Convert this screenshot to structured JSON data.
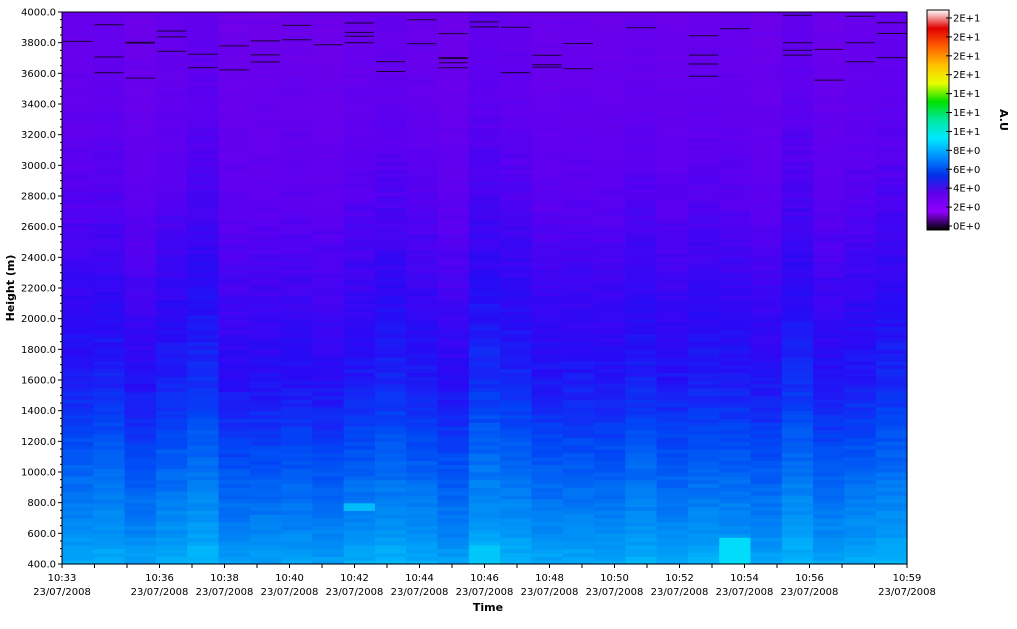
{
  "chart_data": {
    "type": "heatmap",
    "title": "",
    "xlabel": "Time",
    "ylabel": "Height (m)",
    "xlim": [
      "10:33",
      "10:59"
    ],
    "ylim": [
      400,
      4000
    ],
    "grid": false,
    "x_ticks": [
      {
        "time": "10:33",
        "date": "23/07/2008"
      },
      {
        "time": "10:36",
        "date": "23/07/2008"
      },
      {
        "time": "10:38",
        "date": "23/07/2008"
      },
      {
        "time": "10:40",
        "date": "23/07/2008"
      },
      {
        "time": "10:42",
        "date": "23/07/2008"
      },
      {
        "time": "10:44",
        "date": "23/07/2008"
      },
      {
        "time": "10:46",
        "date": "23/07/2008"
      },
      {
        "time": "10:48",
        "date": "23/07/2008"
      },
      {
        "time": "10:50",
        "date": "23/07/2008"
      },
      {
        "time": "10:52",
        "date": "23/07/2008"
      },
      {
        "time": "10:54",
        "date": "23/07/2008"
      },
      {
        "time": "10:56",
        "date": "23/07/2008"
      },
      {
        "time": "10:59",
        "date": "23/07/2008"
      }
    ],
    "y_ticks": [
      "400.0",
      "600.0",
      "800.0",
      "1000.0",
      "1200.0",
      "1400.0",
      "1600.0",
      "1800.0",
      "2000.0",
      "2200.0",
      "2400.0",
      "2600.0",
      "2800.0",
      "3000.0",
      "3200.0",
      "3400.0",
      "3600.0",
      "3800.0",
      "4000.0"
    ],
    "y_tick_values": [
      400,
      600,
      800,
      1000,
      1200,
      1400,
      1600,
      1800,
      2000,
      2200,
      2400,
      2600,
      2800,
      3000,
      3200,
      3400,
      3600,
      3800,
      4000
    ],
    "colorbar": {
      "label": "A.U",
      "placement": "right",
      "ticks": [
        "2E+1",
        "2E+1",
        "2E+1",
        "2E+1",
        "1E+1",
        "1E+1",
        "1E+1",
        "8E+0",
        "6E+0",
        "4E+0",
        "2E+0",
        "0E+0"
      ],
      "colors": [
        "#ffffff",
        "#e00000",
        "#ff6000",
        "#ffc000",
        "#e8ff00",
        "#00e000",
        "#00e8a0",
        "#00e8ff",
        "#0090ff",
        "#0030e8",
        "#6000e8",
        "#9000ff",
        "#000000"
      ]
    },
    "columns": 27,
    "profile": [
      {
        "height": 400,
        "value": 5.4
      },
      {
        "height": 600,
        "value": 4.8
      },
      {
        "height": 800,
        "value": 4.4
      },
      {
        "height": 1000,
        "value": 4.0
      },
      {
        "height": 1200,
        "value": 3.6
      },
      {
        "height": 1400,
        "value": 3.2
      },
      {
        "height": 1600,
        "value": 2.8
      },
      {
        "height": 1800,
        "value": 2.6
      },
      {
        "height": 2000,
        "value": 2.4
      },
      {
        "height": 2400,
        "value": 2.0
      },
      {
        "height": 2800,
        "value": 1.6
      },
      {
        "height": 3200,
        "value": 1.3
      },
      {
        "height": 3600,
        "value": 1.0
      },
      {
        "height": 4000,
        "value": 0.8
      }
    ],
    "hotspots": [
      {
        "time": "10:42",
        "height_range": [
          750,
          800
        ],
        "value": 5.8
      },
      {
        "time": "10:54",
        "height_range": [
          400,
          560
        ],
        "value": 7.0
      },
      {
        "time": "10:46",
        "height_range": [
          400,
          520
        ],
        "value": 6.2
      }
    ]
  }
}
